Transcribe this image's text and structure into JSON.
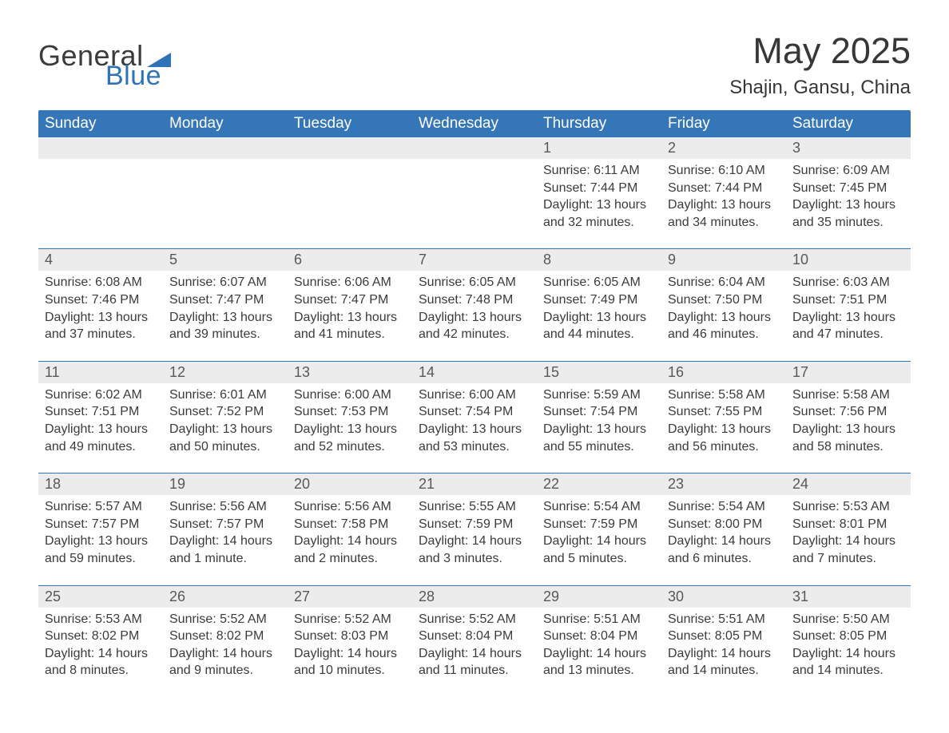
{
  "brand": {
    "word1": "General",
    "word2": "Blue",
    "tri_color": "#2f73b6"
  },
  "title": "May 2025",
  "subtitle": "Shajin, Gansu, China",
  "theme": {
    "header_bg": "#3576b8",
    "header_fg": "#ffffff",
    "date_strip_bg": "#ececec",
    "rule_color": "#3576b8",
    "text_color": "#3b3b3b"
  },
  "day_names": [
    "Sunday",
    "Monday",
    "Tuesday",
    "Wednesday",
    "Thursday",
    "Friday",
    "Saturday"
  ],
  "weeks": [
    {
      "dates": [
        "",
        "",
        "",
        "",
        "1",
        "2",
        "3"
      ],
      "cells": [
        null,
        null,
        null,
        null,
        {
          "sunrise": "6:11 AM",
          "sunset": "7:44 PM",
          "daylight": "13 hours and 32 minutes."
        },
        {
          "sunrise": "6:10 AM",
          "sunset": "7:44 PM",
          "daylight": "13 hours and 34 minutes."
        },
        {
          "sunrise": "6:09 AM",
          "sunset": "7:45 PM",
          "daylight": "13 hours and 35 minutes."
        }
      ]
    },
    {
      "dates": [
        "4",
        "5",
        "6",
        "7",
        "8",
        "9",
        "10"
      ],
      "cells": [
        {
          "sunrise": "6:08 AM",
          "sunset": "7:46 PM",
          "daylight": "13 hours and 37 minutes."
        },
        {
          "sunrise": "6:07 AM",
          "sunset": "7:47 PM",
          "daylight": "13 hours and 39 minutes."
        },
        {
          "sunrise": "6:06 AM",
          "sunset": "7:47 PM",
          "daylight": "13 hours and 41 minutes."
        },
        {
          "sunrise": "6:05 AM",
          "sunset": "7:48 PM",
          "daylight": "13 hours and 42 minutes."
        },
        {
          "sunrise": "6:05 AM",
          "sunset": "7:49 PM",
          "daylight": "13 hours and 44 minutes."
        },
        {
          "sunrise": "6:04 AM",
          "sunset": "7:50 PM",
          "daylight": "13 hours and 46 minutes."
        },
        {
          "sunrise": "6:03 AM",
          "sunset": "7:51 PM",
          "daylight": "13 hours and 47 minutes."
        }
      ]
    },
    {
      "dates": [
        "11",
        "12",
        "13",
        "14",
        "15",
        "16",
        "17"
      ],
      "cells": [
        {
          "sunrise": "6:02 AM",
          "sunset": "7:51 PM",
          "daylight": "13 hours and 49 minutes."
        },
        {
          "sunrise": "6:01 AM",
          "sunset": "7:52 PM",
          "daylight": "13 hours and 50 minutes."
        },
        {
          "sunrise": "6:00 AM",
          "sunset": "7:53 PM",
          "daylight": "13 hours and 52 minutes."
        },
        {
          "sunrise": "6:00 AM",
          "sunset": "7:54 PM",
          "daylight": "13 hours and 53 minutes."
        },
        {
          "sunrise": "5:59 AM",
          "sunset": "7:54 PM",
          "daylight": "13 hours and 55 minutes."
        },
        {
          "sunrise": "5:58 AM",
          "sunset": "7:55 PM",
          "daylight": "13 hours and 56 minutes."
        },
        {
          "sunrise": "5:58 AM",
          "sunset": "7:56 PM",
          "daylight": "13 hours and 58 minutes."
        }
      ]
    },
    {
      "dates": [
        "18",
        "19",
        "20",
        "21",
        "22",
        "23",
        "24"
      ],
      "cells": [
        {
          "sunrise": "5:57 AM",
          "sunset": "7:57 PM",
          "daylight": "13 hours and 59 minutes."
        },
        {
          "sunrise": "5:56 AM",
          "sunset": "7:57 PM",
          "daylight": "14 hours and 1 minute."
        },
        {
          "sunrise": "5:56 AM",
          "sunset": "7:58 PM",
          "daylight": "14 hours and 2 minutes."
        },
        {
          "sunrise": "5:55 AM",
          "sunset": "7:59 PM",
          "daylight": "14 hours and 3 minutes."
        },
        {
          "sunrise": "5:54 AM",
          "sunset": "7:59 PM",
          "daylight": "14 hours and 5 minutes."
        },
        {
          "sunrise": "5:54 AM",
          "sunset": "8:00 PM",
          "daylight": "14 hours and 6 minutes."
        },
        {
          "sunrise": "5:53 AM",
          "sunset": "8:01 PM",
          "daylight": "14 hours and 7 minutes."
        }
      ]
    },
    {
      "dates": [
        "25",
        "26",
        "27",
        "28",
        "29",
        "30",
        "31"
      ],
      "cells": [
        {
          "sunrise": "5:53 AM",
          "sunset": "8:02 PM",
          "daylight": "14 hours and 8 minutes."
        },
        {
          "sunrise": "5:52 AM",
          "sunset": "8:02 PM",
          "daylight": "14 hours and 9 minutes."
        },
        {
          "sunrise": "5:52 AM",
          "sunset": "8:03 PM",
          "daylight": "14 hours and 10 minutes."
        },
        {
          "sunrise": "5:52 AM",
          "sunset": "8:04 PM",
          "daylight": "14 hours and 11 minutes."
        },
        {
          "sunrise": "5:51 AM",
          "sunset": "8:04 PM",
          "daylight": "14 hours and 13 minutes."
        },
        {
          "sunrise": "5:51 AM",
          "sunset": "8:05 PM",
          "daylight": "14 hours and 14 minutes."
        },
        {
          "sunrise": "5:50 AM",
          "sunset": "8:05 PM",
          "daylight": "14 hours and 14 minutes."
        }
      ]
    }
  ],
  "labels": {
    "sunrise": "Sunrise: ",
    "sunset": "Sunset: ",
    "daylight": "Daylight: "
  }
}
